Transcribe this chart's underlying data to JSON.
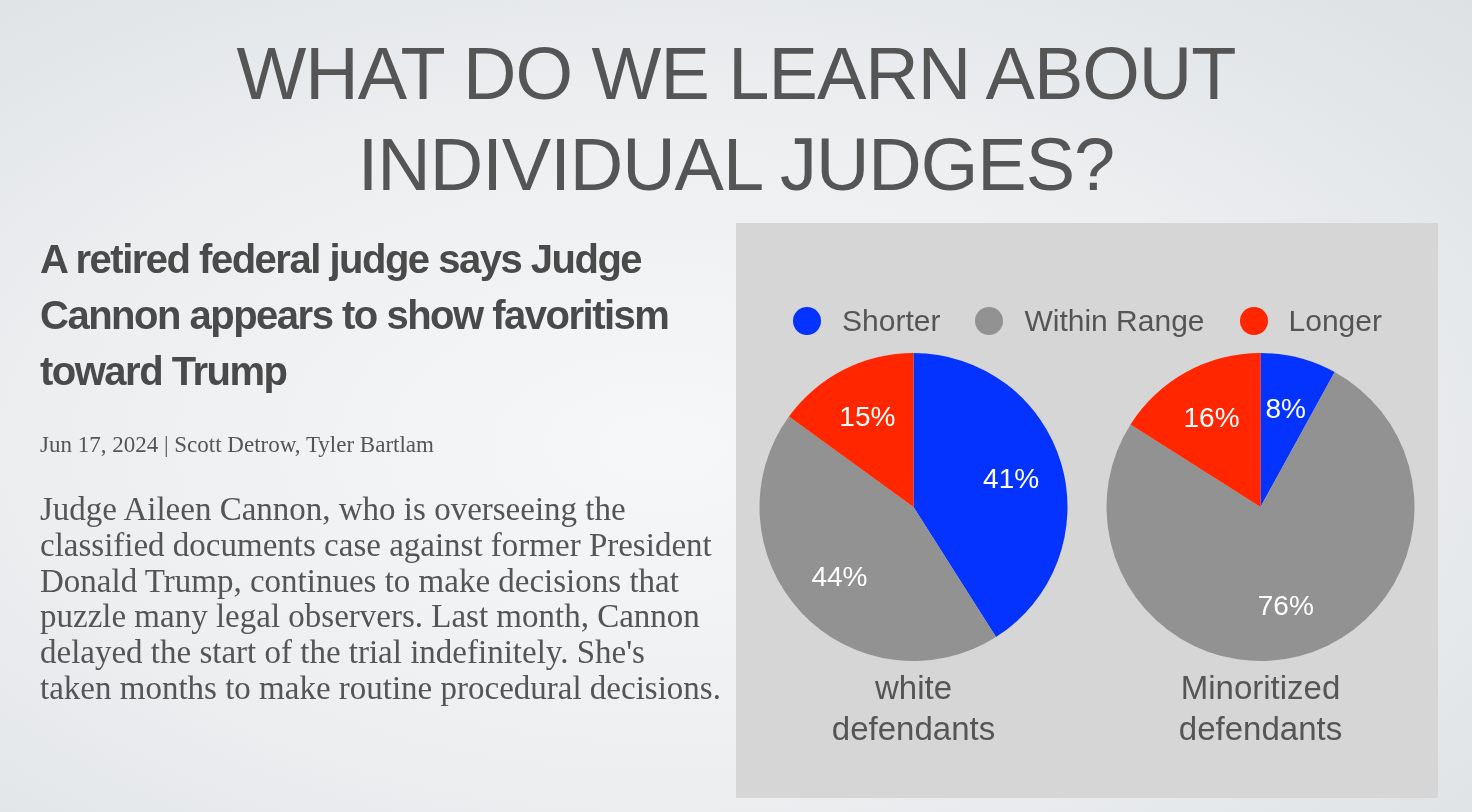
{
  "chart_data": [
    {
      "type": "other",
      "title": "WHAT DO WE LEARN ABOUT INDIVIDUAL JUDGES?",
      "subtitle": "A retired federal judge says Judge Cannon appears to show favoritism toward Trump",
      "annotations": [
        "Jun 17, 2024 | Scott Detrow, Tyler Bartlam",
        "Judge Aileen Cannon, who is overseeing the classified documents case against former President Donald Trump, continues to make decisions that puzzle many legal observers. Last month, Cannon delayed the start of the trial indefinitely. She's taken months to make routine procedural decisions."
      ]
    },
    {
      "type": "pie",
      "categories": [
        "Shorter",
        "Within Range",
        "Longer"
      ],
      "colors": [
        "#0433ff",
        "#929292",
        "#ff2600"
      ],
      "legend": "top",
      "series": [
        {
          "name": "white defendants",
          "values": [
            41,
            44,
            15
          ],
          "value_labels": [
            "41%",
            "44%",
            "15%"
          ]
        },
        {
          "name": "Minoritized defendants",
          "values": [
            8,
            76,
            16
          ],
          "value_labels": [
            "8%",
            "76%",
            "16%"
          ]
        }
      ]
    }
  ]
}
